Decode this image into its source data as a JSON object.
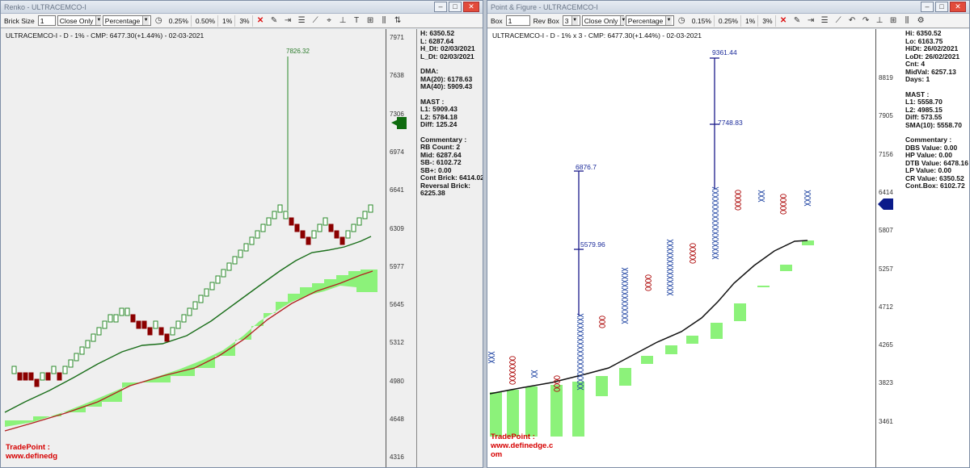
{
  "left": {
    "window_title": "Renko - ULTRACEMCO-I",
    "toolbar": {
      "brick_size_label": "Brick Size",
      "brick_size_value": "1",
      "close_only": "Close Only",
      "percentage": "Percentage",
      "btn_025": "0.25%",
      "btn_050": "0.50%",
      "btn_1": "1%",
      "btn_3": "3%"
    },
    "chart_title": "ULTRACEMCO-I - D - 1% - CMP: 6477.30(+1.44%) - 02-03-2021",
    "y_ticks": [
      "7971",
      "7638",
      "7306",
      "6974",
      "6641",
      "6309",
      "5977",
      "5645",
      "5312",
      "4980",
      "4648",
      "4316"
    ],
    "peak_label": "7826.32",
    "info": {
      "ohlc": [
        "H: 6350.52",
        "L: 6287.64",
        "H_Dt: 02/03/2021",
        "L_Dt: 02/03/2021"
      ],
      "dma": [
        "DMA:",
        "MA(20): 6178.63",
        "MA(40): 5909.43"
      ],
      "mast": [
        "MAST :",
        "L1: 5909.43",
        "L2: 5784.18",
        "Diff: 125.24"
      ],
      "commentary": [
        "Commentary :",
        "RB Count: 2",
        "Mid: 6287.64",
        "SB-: 6102.72",
        "SB+: 0.00",
        "Cont Brick: 6414.02",
        "Reversal Brick:",
        "6225.38"
      ]
    },
    "brand_lines": [
      "TradePoint :",
      "www.definedg"
    ],
    "colors": {
      "up_brick": "#2a8a2a",
      "down_brick": "#8b0000",
      "ma_fast": "#1a6e1a",
      "ma_slow": "#b22222",
      "cloud": "#8cf27a"
    }
  },
  "right": {
    "window_title": "Point & Figure - ULTRACEMCO-I",
    "toolbar": {
      "box_label": "Box",
      "box_value": "1",
      "rev_box_label": "Rev Box",
      "rev_box_value": "3",
      "close_only": "Close Only",
      "percentage": "Percentage",
      "btn_015": "0.15%",
      "btn_025": "0.25%",
      "btn_1": "1%",
      "btn_3": "3%"
    },
    "chart_title": "ULTRACEMCO-I - D - 1% x 3 - CMP: 6477.30(+1.44%) - 02-03-2021",
    "y_ticks": [
      "8819",
      "7905",
      "7156",
      "6414",
      "5807",
      "5257",
      "4712",
      "4265",
      "3823",
      "3461"
    ],
    "price_labels": [
      "9361.44",
      "7748.83",
      "6876.7",
      "5579.96"
    ],
    "info": {
      "ohlc": [
        "Hi: 6350.52",
        "Lo: 6163.75",
        "HiDt: 26/02/2021",
        "LoDt: 26/02/2021",
        "Cnt: 4",
        "MidVal: 6257.13",
        "Days: 1"
      ],
      "mast": [
        "MAST :",
        "L1: 5558.70",
        "L2: 4985.15",
        "Diff: 573.55",
        "SMA(10): 5558.70"
      ],
      "commentary": [
        "Commentary :",
        "DBS Value:  0.00",
        "HP Value: 0.00",
        "DTB Value: 6478.16",
        "LP Value: 0.00",
        "CR Value: 6350.52",
        "Cont.Box: 6102.72"
      ]
    },
    "brand_lines": [
      "TradePoint :",
      "www.definedge.c",
      "om"
    ],
    "colors": {
      "x_mark": "#1a3fa0",
      "o_mark": "#b01010",
      "line": "#111111",
      "cloud": "#8cf27a",
      "target": "#1a1a8a"
    }
  }
}
